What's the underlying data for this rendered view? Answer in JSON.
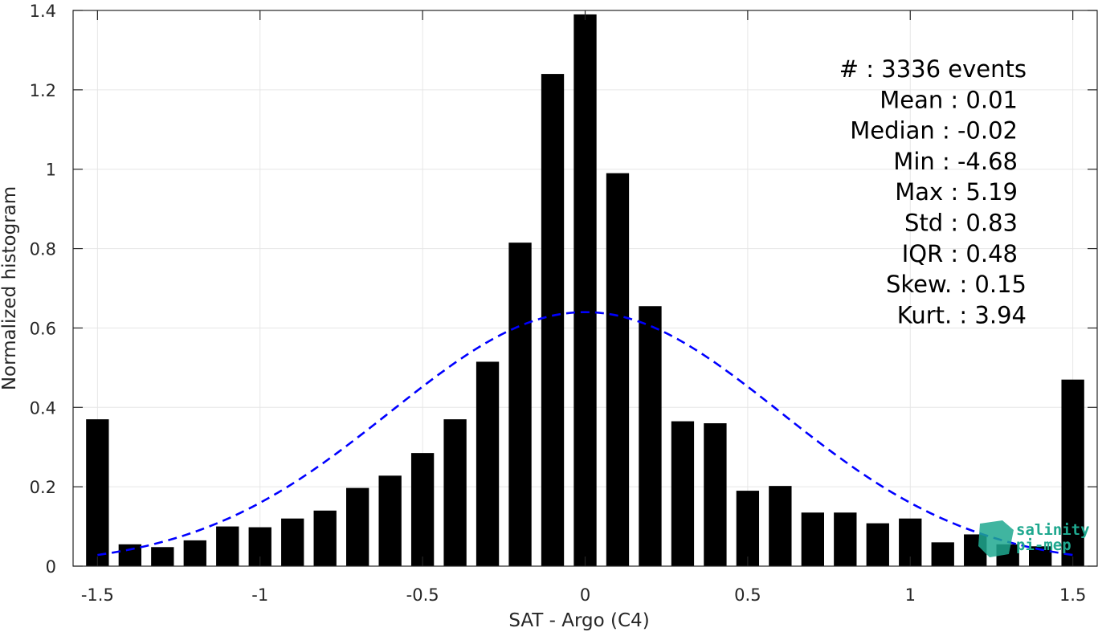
{
  "chart_data": {
    "type": "bar",
    "title": "",
    "xlabel": "SAT - Argo (C4)",
    "ylabel": "Normalized histogram",
    "xlim": [
      -1.575,
      1.575
    ],
    "ylim": [
      0,
      1.4
    ],
    "grid": true,
    "x_ticks": [
      -1.5,
      -1,
      -0.5,
      0,
      0.5,
      1,
      1.5
    ],
    "x_tick_labels": [
      "-1.5",
      "-1",
      "-0.5",
      "0",
      "0.5",
      "1",
      "1.5"
    ],
    "y_ticks": [
      0,
      0.2,
      0.4,
      0.6,
      0.8,
      1,
      1.2,
      1.4
    ],
    "y_tick_labels": [
      "0",
      "0.2",
      "0.4",
      "0.6",
      "0.8",
      "1",
      "1.2",
      "1.4"
    ],
    "bar_width": 0.07,
    "bars": {
      "x": [
        -1.5,
        -1.4,
        -1.3,
        -1.2,
        -1.1,
        -1.0,
        -0.9,
        -0.8,
        -0.7,
        -0.6,
        -0.5,
        -0.4,
        -0.3,
        -0.2,
        -0.1,
        0.0,
        0.1,
        0.2,
        0.3,
        0.4,
        0.5,
        0.6,
        0.7,
        0.8,
        0.9,
        1.0,
        1.1,
        1.2,
        1.3,
        1.4,
        1.5
      ],
      "values": [
        0.37,
        0.055,
        0.048,
        0.065,
        0.1,
        0.098,
        0.12,
        0.14,
        0.197,
        0.228,
        0.285,
        0.37,
        0.515,
        0.815,
        1.24,
        1.39,
        0.99,
        0.655,
        0.365,
        0.36,
        0.19,
        0.202,
        0.135,
        0.135,
        0.108,
        0.12,
        0.06,
        0.08,
        0.055,
        0.05,
        0.47
      ],
      "color": "#000000"
    },
    "fit_curve": {
      "style": "dashed",
      "color": "#0000ff",
      "distribution": "normal",
      "mean": 0.0,
      "peak": 0.64,
      "sigma": 0.6,
      "x_range": [
        -1.5,
        1.5
      ]
    },
    "stats": [
      {
        "label": "#  ",
        "value": "3336 events"
      },
      {
        "label": "Mean",
        "value": "0.01"
      },
      {
        "label": "Median",
        "value": "-0.02"
      },
      {
        "label": "Min",
        "value": "-4.68"
      },
      {
        "label": "Max",
        "value": "5.19"
      },
      {
        "label": "Std",
        "value": "0.83"
      },
      {
        "label": "IQR",
        "value": "0.48"
      },
      {
        "label": "Skew.",
        "value": "0.15"
      },
      {
        "label": "Kurt.",
        "value": "3.94"
      }
    ],
    "logo": {
      "line1": "salinity",
      "line2": "pi-mep",
      "color": "#1fa88f"
    }
  }
}
